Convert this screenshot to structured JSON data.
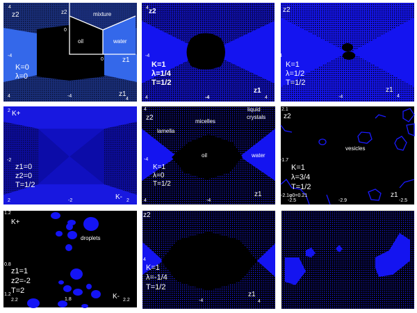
{
  "colors": {
    "blue": "#1414f0",
    "light_blue": "#3468ea",
    "black": "#000000",
    "label": "#ffffff"
  },
  "panels": [
    {
      "params": [
        "K=0",
        "λ=0"
      ],
      "ticks": [
        "4",
        "-4",
        "4",
        "-4",
        "4"
      ],
      "axes": [
        "z2",
        "z1"
      ],
      "inset": {
        "axes": [
          "z2",
          "z1"
        ],
        "zeros": [
          "0",
          "0"
        ],
        "regions": [
          "mixture",
          "oil",
          "water"
        ]
      }
    },
    {
      "params": [
        "K=1",
        "λ=1/4",
        "T=1/2"
      ],
      "ticks": [
        "4",
        "-4",
        "4",
        "-4",
        "4"
      ],
      "axes": [
        "z2",
        "z1"
      ]
    },
    {
      "params": [
        "K=1",
        "λ=1/2",
        "T=1/2"
      ],
      "ticks": [
        "4",
        "-4",
        "4"
      ],
      "axes": [
        "z2",
        "z1"
      ]
    },
    {
      "params": [
        "z1=0",
        "z2=0",
        "T=1/2"
      ],
      "ticks": [
        "2",
        "-2",
        "2",
        "-2",
        "2"
      ],
      "axes": [
        "K+",
        "K-"
      ]
    },
    {
      "params": [
        "K=1",
        "λ=0",
        "T=1/2"
      ],
      "ticks": [
        "4",
        "-4",
        "4",
        "-4"
      ],
      "axes": [
        "z2",
        "z1"
      ],
      "regions": [
        "liquid",
        "crystals",
        "micelles",
        "lamella",
        "oil",
        "water"
      ]
    },
    {
      "params": [
        "K=1",
        "λ=3/4",
        "T=1/2"
      ],
      "ticks": [
        "2.1",
        "-1.7",
        "-2.1",
        "-2.5",
        "-2.9",
        "-2.5"
      ],
      "axes": [
        "z2",
        "z1"
      ],
      "regions": [
        "vesicles"
      ],
      "note": "φ0=0.21"
    },
    {
      "params": [
        "z1=1",
        "z2=-2",
        "T=2"
      ],
      "ticks": [
        "1.2",
        "0.8",
        "1.2",
        "2.2",
        "1.8",
        "2.2"
      ],
      "axes": [
        "K+",
        "K-"
      ],
      "regions": [
        "droplets"
      ]
    },
    {
      "params": [
        "K=1",
        "λ=-1/4",
        "T=1/2"
      ],
      "ticks": [
        "4",
        "-4",
        "4"
      ],
      "axes": [
        "z2",
        "z1"
      ]
    },
    {}
  ]
}
